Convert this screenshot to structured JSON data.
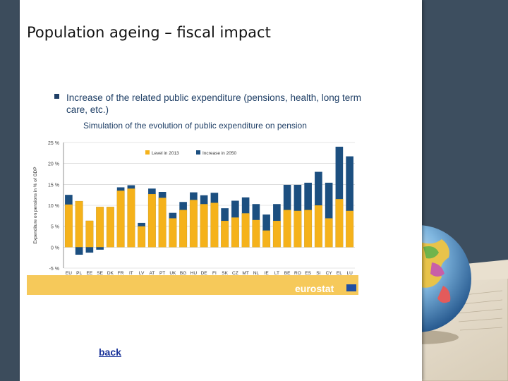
{
  "slide": {
    "title": "Population ageing – fiscal impact",
    "bullet": "Increase of the related public expenditure (pensions, health, long term care, etc.)",
    "subtitle": "Simulation of the evolution of public expenditure on pension",
    "back_link": "back"
  },
  "colors": {
    "background": "#3d4e5f",
    "level": "#f5b21b",
    "increase": "#1c4f80",
    "eurostat_band": "#f6c95a",
    "text_blue": "#1f3f66"
  },
  "chart_data": {
    "type": "bar",
    "stacked": true,
    "ylabel": "Expenditure on pensions in % of GDP",
    "ylim": [
      -5,
      25
    ],
    "yticks": [
      "-5 %",
      "0 %",
      "5 %",
      "10 %",
      "15 %",
      "20 %",
      "25 %"
    ],
    "legend_position": "top",
    "categories": [
      "EU",
      "PL",
      "EE",
      "SE",
      "DK",
      "FR",
      "IT",
      "LV",
      "AT",
      "PT",
      "UK",
      "BG",
      "HU",
      "DE",
      "FI",
      "SK",
      "CZ",
      "MT",
      "NL",
      "IE",
      "LT",
      "BE",
      "RO",
      "ES",
      "SI",
      "CY",
      "EL",
      "LU"
    ],
    "series": [
      {
        "name": "Level in 2013",
        "values": [
          10.2,
          11.0,
          6.3,
          9.6,
          9.6,
          13.5,
          14.0,
          5.0,
          12.7,
          11.8,
          6.9,
          8.9,
          11.3,
          10.3,
          10.6,
          6.3,
          7.1,
          8.1,
          6.5,
          4.0,
          6.3,
          8.9,
          8.7,
          8.9,
          10.0,
          6.9,
          11.5,
          8.7
        ]
      },
      {
        "name": "Increase in 2050",
        "values": [
          2.3,
          -1.8,
          -1.3,
          -0.6,
          0.0,
          0.8,
          0.8,
          0.8,
          1.3,
          1.4,
          1.3,
          1.9,
          1.8,
          2.1,
          2.4,
          3.0,
          4.0,
          3.8,
          3.8,
          3.8,
          4.0,
          6.0,
          6.2,
          6.5,
          8.0,
          8.5,
          12.5,
          13.0
        ]
      }
    ],
    "branding": "eurostat"
  }
}
